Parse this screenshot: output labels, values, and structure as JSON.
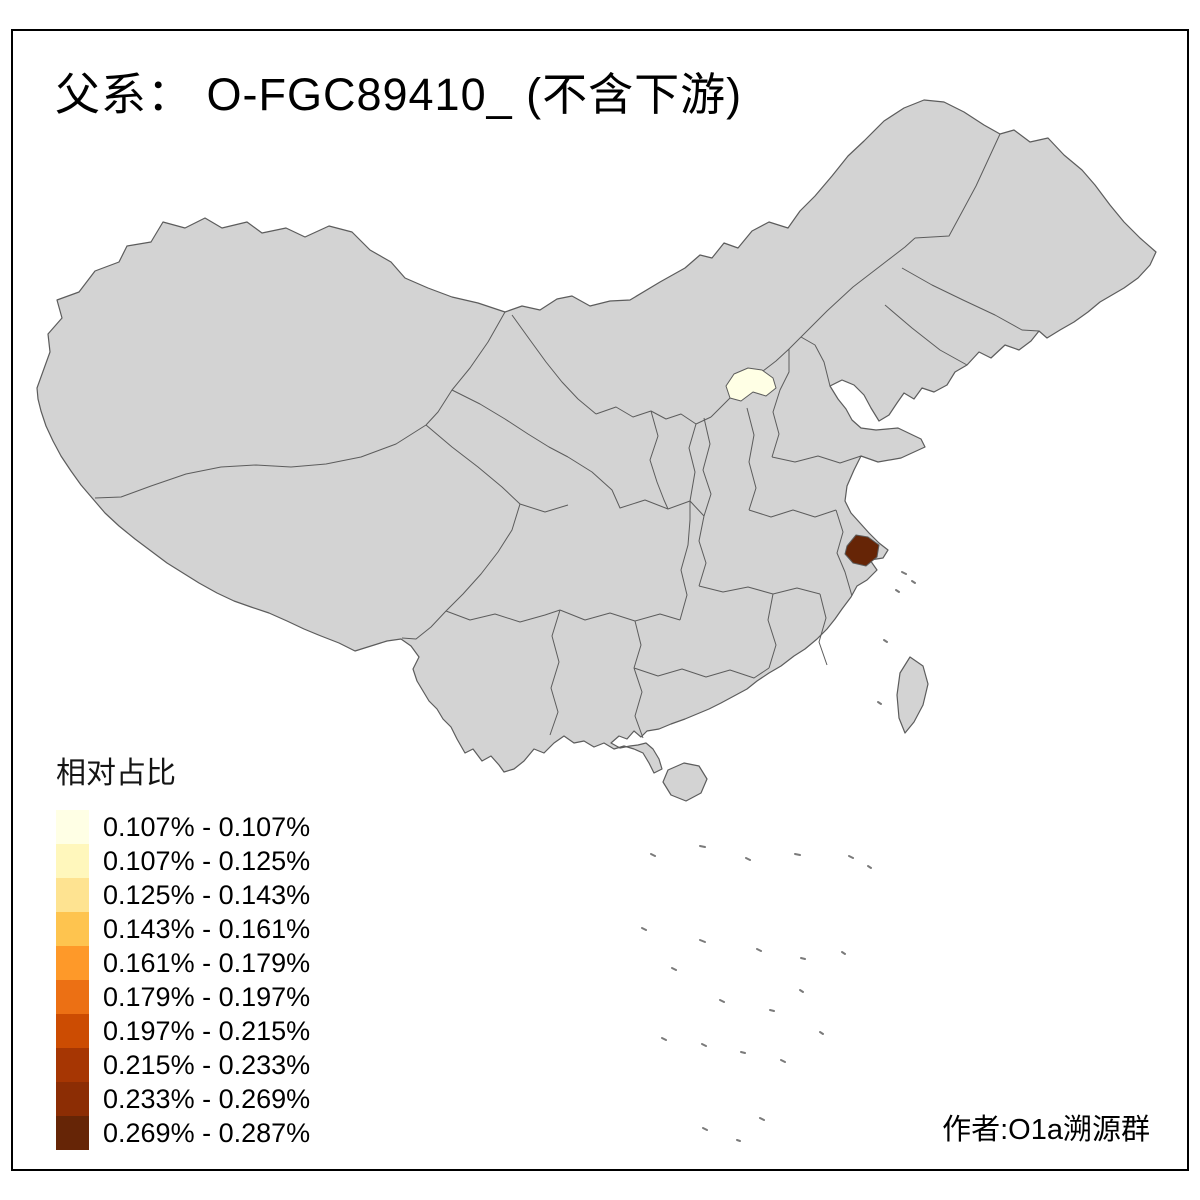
{
  "title": "父系： O-FGC89410_ (不含下游)",
  "author": "作者:O1a溯源群",
  "legend": {
    "title": "相对占比",
    "entries": [
      {
        "label": "0.107% - 0.107%",
        "color": "#FFFFE5"
      },
      {
        "label": "0.107% - 0.125%",
        "color": "#FFF7BC"
      },
      {
        "label": "0.125% - 0.143%",
        "color": "#FEE391"
      },
      {
        "label": "0.143% - 0.161%",
        "color": "#FEC44F"
      },
      {
        "label": "0.161% - 0.179%",
        "color": "#FE9929"
      },
      {
        "label": "0.179% - 0.197%",
        "color": "#EC7014"
      },
      {
        "label": "0.197% - 0.215%",
        "color": "#CC4C02"
      },
      {
        "label": "0.215% - 0.233%",
        "color": "#A63603"
      },
      {
        "label": "0.233% - 0.269%",
        "color": "#8C2D04"
      },
      {
        "label": "0.269% - 0.287%",
        "color": "#662506"
      }
    ]
  },
  "map": {
    "base_fill": "#d3d3d3",
    "boundary_color": "#5c5c5c",
    "background": "#ffffff",
    "highlighted_regions": [
      {
        "name": "north-china-region",
        "class_label": "0.107% - 0.107%",
        "color": "#FFFFE5"
      },
      {
        "name": "east-china-region",
        "class_label": "0.269% - 0.287%",
        "color": "#662506"
      }
    ]
  }
}
